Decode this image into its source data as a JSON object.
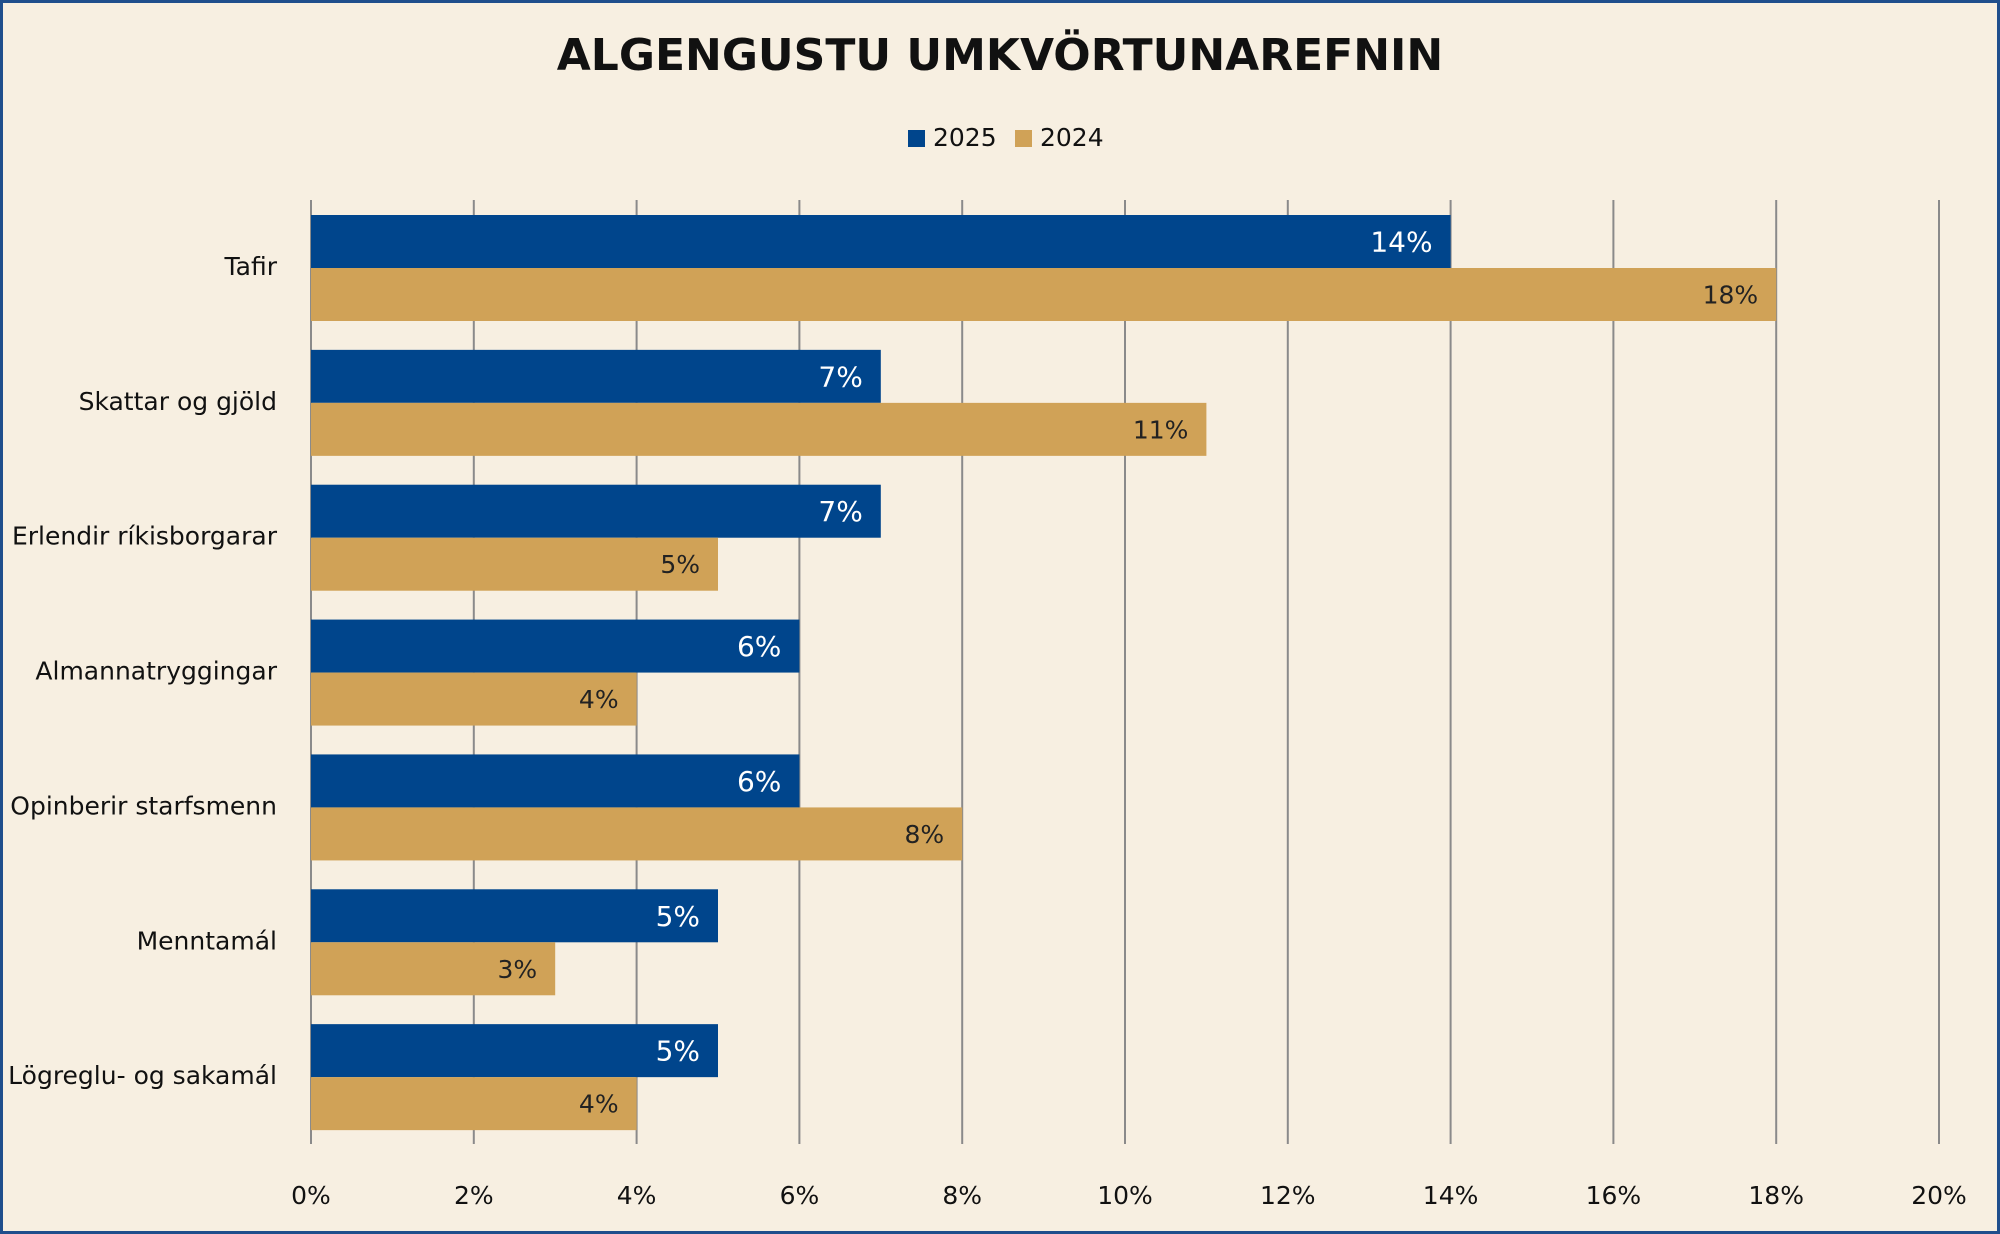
{
  "chart_data": {
    "type": "bar",
    "orientation": "horizontal",
    "title": "ALGENGUSTU UMKVÖRTUNAREFNIN",
    "categories": [
      "Tafir",
      "Skattar og gjöld",
      "Erlendir ríkisborgarar",
      "Almannatryggingar",
      "Opinberir starfsmenn",
      "Menntamál",
      "Lögreglu- og sakamál"
    ],
    "series": [
      {
        "name": "2025",
        "color": "#00458c",
        "values": [
          14,
          7,
          7,
          6,
          6,
          5,
          5
        ],
        "value_labels": [
          "14%",
          "7%",
          "7%",
          "6%",
          "6%",
          "5%",
          "5%"
        ]
      },
      {
        "name": "2024",
        "color": "#d0a257",
        "values": [
          18,
          11,
          5,
          4,
          8,
          3,
          4
        ],
        "value_labels": [
          "18%",
          "11%",
          "5%",
          "4%",
          "8%",
          "3%",
          "4%"
        ]
      }
    ],
    "xlim": [
      0,
      20
    ],
    "xticks": [
      {
        "value": 0,
        "label": "0%"
      },
      {
        "value": 2,
        "label": "2%"
      },
      {
        "value": 4,
        "label": "4%"
      },
      {
        "value": 6,
        "label": "6%"
      },
      {
        "value": 8,
        "label": "8%"
      },
      {
        "value": 10,
        "label": "10%"
      },
      {
        "value": 12,
        "label": "12%"
      },
      {
        "value": 14,
        "label": "14%"
      },
      {
        "value": 16,
        "label": "16%"
      },
      {
        "value": 18,
        "label": "18%"
      },
      {
        "value": 20,
        "label": "20%"
      }
    ],
    "grid": true,
    "legend": "top"
  }
}
